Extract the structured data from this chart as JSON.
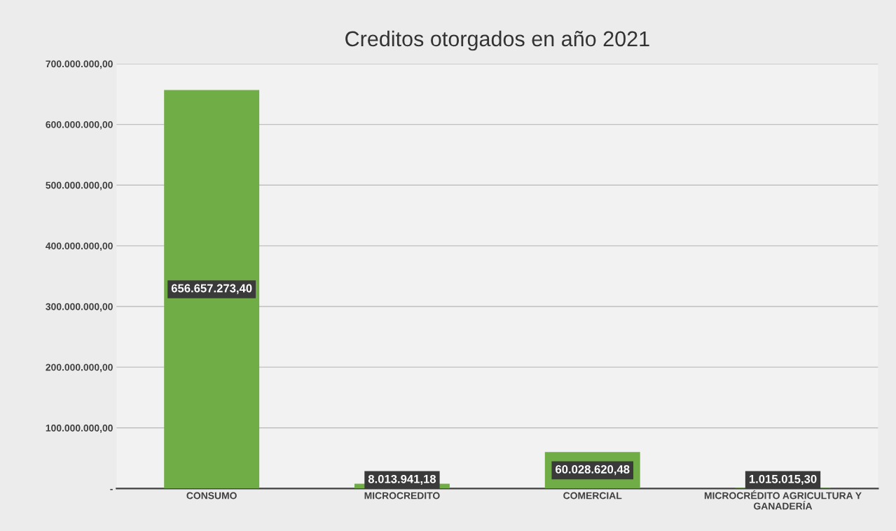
{
  "chart_data": {
    "type": "bar",
    "title": "Creditos otorgados en año 2021",
    "categories": [
      "CONSUMO",
      "MICROCREDITO",
      "COMERCIAL",
      "MICROCRÉDITO AGRICULTURA Y\nGANADERÍA"
    ],
    "values": [
      656657273.4,
      8013941.18,
      60028620.48,
      1015015.3
    ],
    "value_labels": [
      "656.657.273,40",
      "8.013.941,18",
      "60.028.620,48",
      "1.015.015,30"
    ],
    "color": "#70ad47",
    "ylim": [
      0,
      700000000
    ],
    "yticks": [
      {
        "value": 0,
        "label": "-"
      },
      {
        "value": 100000000,
        "label": "100.000.000,00"
      },
      {
        "value": 200000000,
        "label": "200.000.000,00"
      },
      {
        "value": 300000000,
        "label": "300.000.000,00"
      },
      {
        "value": 400000000,
        "label": "400.000.000,00"
      },
      {
        "value": 500000000,
        "label": "500.000.000,00"
      },
      {
        "value": 600000000,
        "label": "600.000.000,00"
      },
      {
        "value": 700000000,
        "label": "700.000.000,00"
      }
    ],
    "grid": "y"
  }
}
